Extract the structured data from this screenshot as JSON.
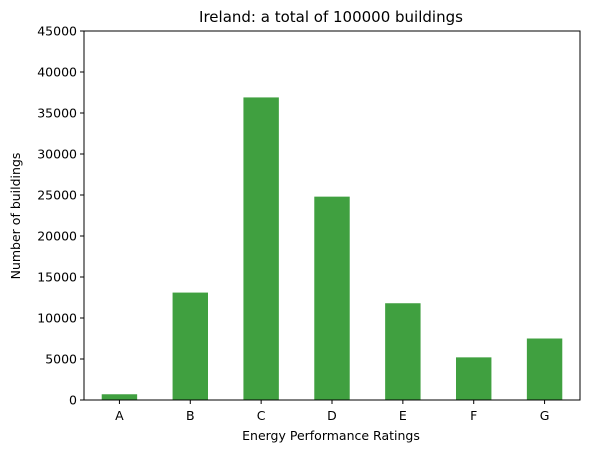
{
  "chart_data": {
    "type": "bar",
    "title": "Ireland: a total of 100000 buildings",
    "xlabel": "Energy Performance Ratings",
    "ylabel": "Number of buildings",
    "categories": [
      "A",
      "B",
      "C",
      "D",
      "E",
      "F",
      "G"
    ],
    "values": [
      700,
      13100,
      36900,
      24800,
      11800,
      5200,
      7500
    ],
    "ylim": [
      0,
      45000
    ],
    "yticks": [
      0,
      5000,
      10000,
      15000,
      20000,
      25000,
      30000,
      35000,
      40000,
      45000
    ],
    "grid": false,
    "legend": "none",
    "bar_color": "#40a040"
  }
}
